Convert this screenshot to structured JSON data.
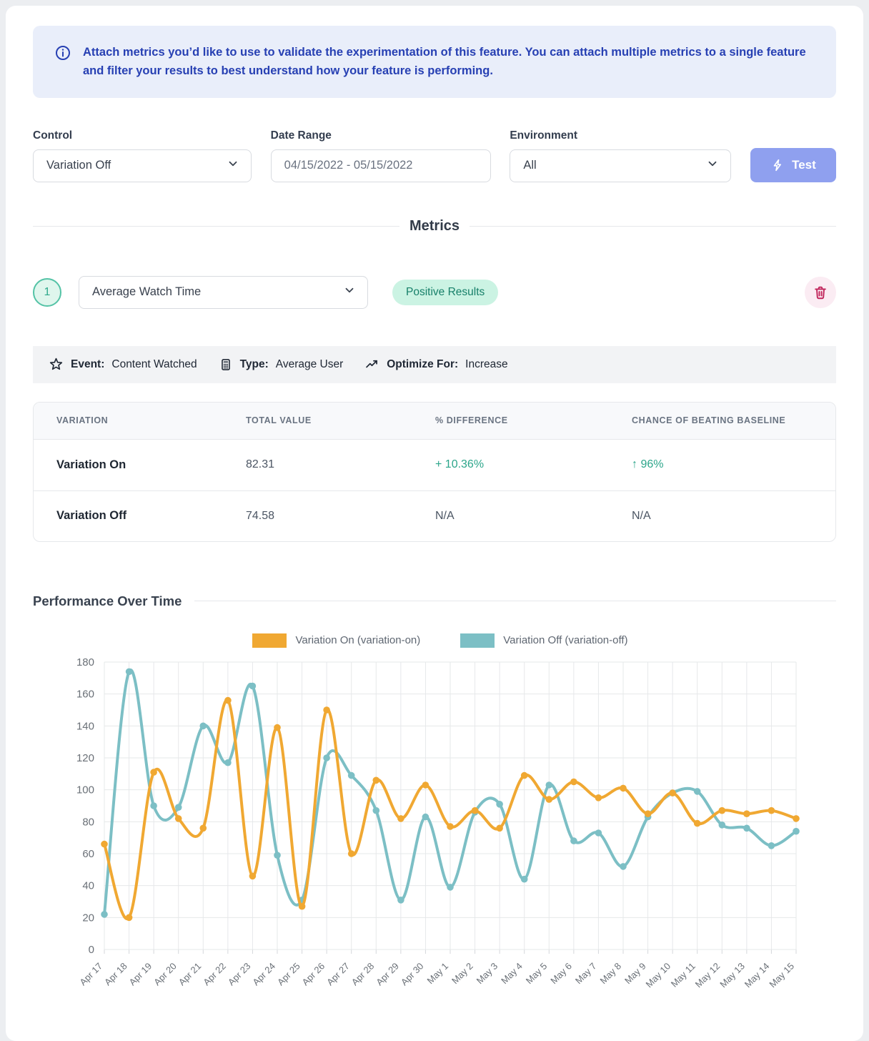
{
  "banner": {
    "text": "Attach metrics you’d like to use to validate the experimentation of this feature. You can attach multiple metrics to a single feature and filter your results to best understand how your feature is performing."
  },
  "filters": {
    "control": {
      "label": "Control",
      "value": "Variation Off"
    },
    "date_range": {
      "label": "Date Range",
      "value": "04/15/2022 - 05/15/2022"
    },
    "environment": {
      "label": "Environment",
      "value": "All"
    },
    "test_button": "Test"
  },
  "metrics_section": {
    "title": "Metrics",
    "metric": {
      "index": "1",
      "name": "Average Watch Time",
      "badge": "Positive Results",
      "event_label": "Event:",
      "event_value": "Content Watched",
      "type_label": "Type:",
      "type_value": "Average User",
      "optimize_label": "Optimize For:",
      "optimize_value": "Increase"
    },
    "table": {
      "headers": [
        "VARIATION",
        "TOTAL VALUE",
        "% DIFFERENCE",
        "CHANCE OF BEATING BASELINE"
      ],
      "rows": [
        {
          "variation": "Variation On",
          "total": "82.31",
          "difference": "+ 10.36%",
          "chance": "↑ 96%",
          "positive": true
        },
        {
          "variation": "Variation Off",
          "total": "74.58",
          "difference": "N/A",
          "chance": "N/A",
          "positive": false
        }
      ]
    }
  },
  "performance": {
    "title": "Performance Over Time"
  },
  "chart_data": {
    "type": "line",
    "title": "",
    "xlabel": "",
    "ylabel": "",
    "ylim": [
      0,
      180
    ],
    "ytick_step": 20,
    "grid": true,
    "legend_position": "top",
    "categories": [
      "Apr 17",
      "Apr 18",
      "Apr 19",
      "Apr 20",
      "Apr 21",
      "Apr 22",
      "Apr 23",
      "Apr 24",
      "Apr 25",
      "Apr 26",
      "Apr 27",
      "Apr 28",
      "Apr 29",
      "Apr 30",
      "May 1",
      "May 2",
      "May 3",
      "May 4",
      "May 5",
      "May 6",
      "May 7",
      "May 8",
      "May 9",
      "May 10",
      "May 11",
      "May 12",
      "May 13",
      "May 14",
      "May 15"
    ],
    "series": [
      {
        "name": "Variation On (variation-on)",
        "color": "#F0A832",
        "values": [
          66,
          20,
          111,
          82,
          76,
          156,
          46,
          139,
          27,
          150,
          60,
          106,
          82,
          103,
          77,
          87,
          76,
          109,
          94,
          105,
          95,
          101,
          85,
          98,
          79,
          87,
          85,
          87,
          82
        ]
      },
      {
        "name": "Variation Off (variation-off)",
        "color": "#7CBFC5",
        "values": [
          22,
          174,
          90,
          89,
          140,
          117,
          165,
          59,
          31,
          120,
          109,
          87,
          31,
          83,
          39,
          86,
          91,
          44,
          103,
          68,
          73,
          52,
          83,
          98,
          99,
          78,
          76,
          65,
          74
        ]
      }
    ]
  },
  "colors": {
    "banner_bg": "#E9EEFA",
    "banner_text": "#2740B3",
    "test_button_bg": "#8FA0EF",
    "badge_bg": "#CBF3E3",
    "badge_text": "#17806A",
    "positive_text": "#2CA58A",
    "trash_icon": "#C1275D",
    "series_on": "#F0A832",
    "series_off": "#7CBFC5"
  }
}
